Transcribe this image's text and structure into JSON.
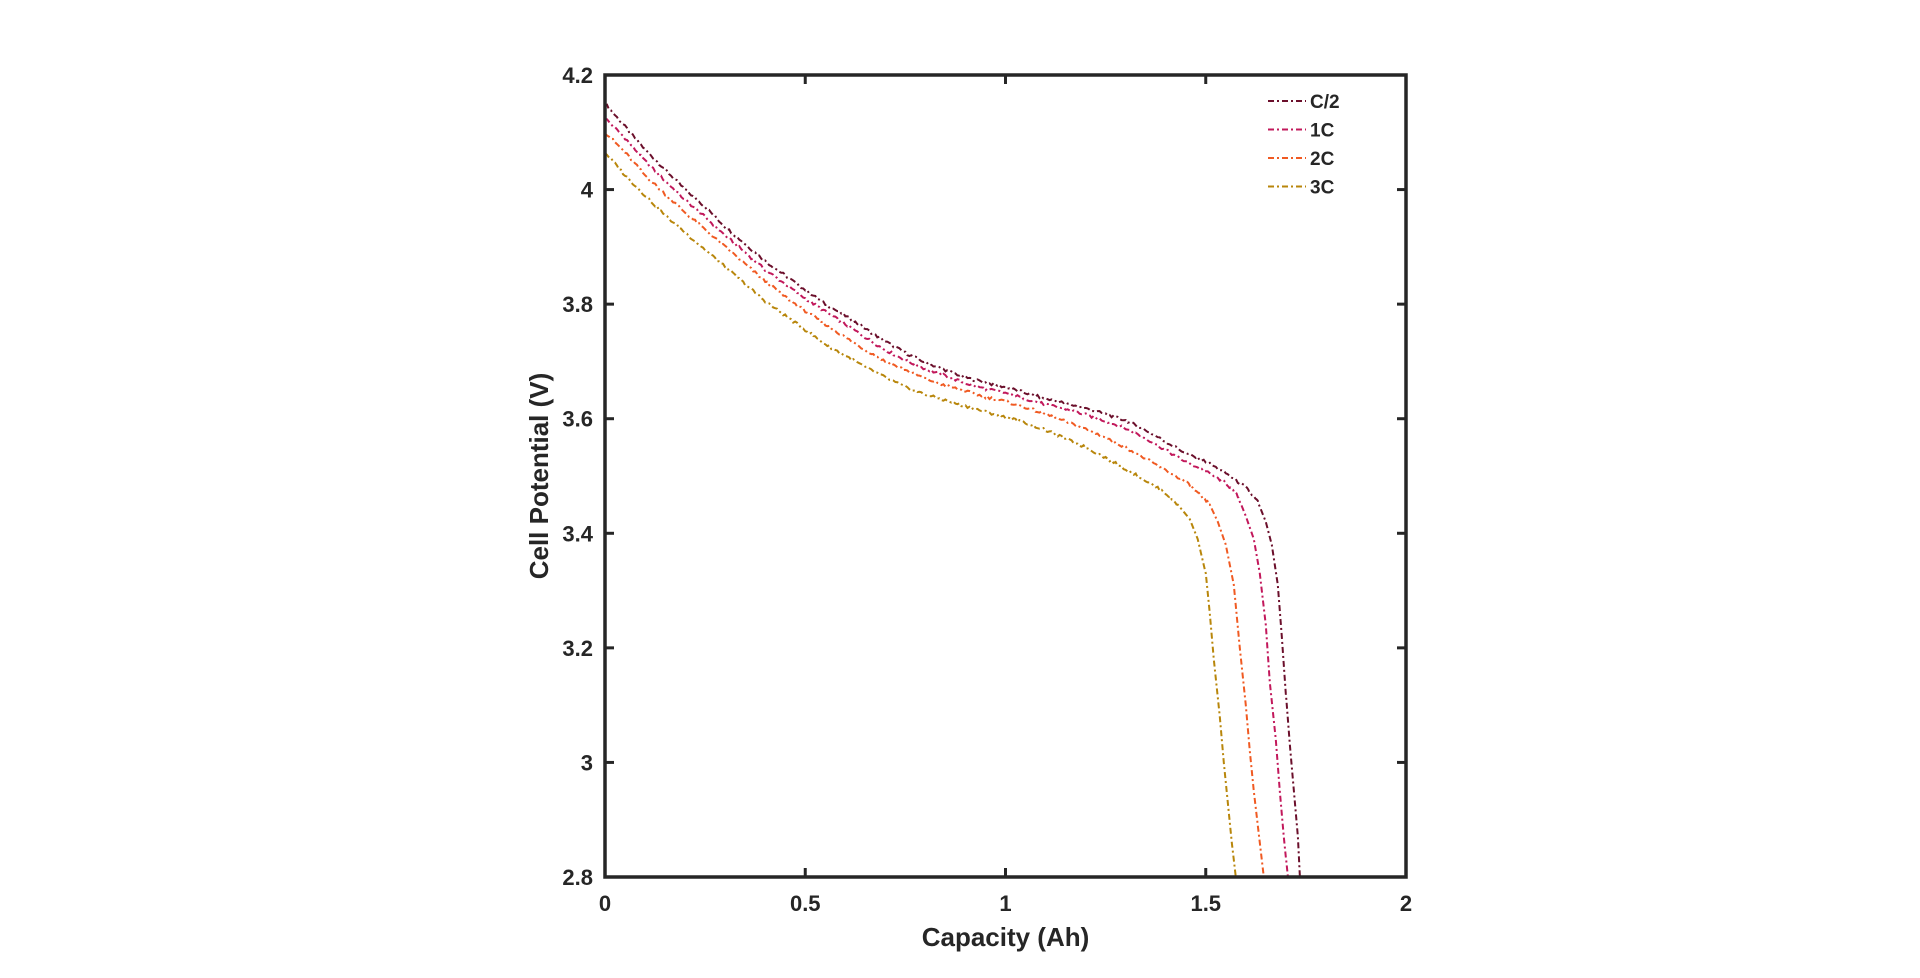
{
  "chart_data": {
    "type": "line",
    "title": "",
    "xlabel": "Capacity (Ah)",
    "ylabel": "Cell Potential (V)",
    "xlim": [
      0,
      2
    ],
    "ylim": [
      2.8,
      4.2
    ],
    "x_ticks": [
      0,
      0.5,
      1,
      1.5,
      2
    ],
    "x_tick_labels": [
      "0",
      "0.5",
      "1",
      "1.5",
      "2"
    ],
    "y_ticks": [
      2.8,
      3,
      3.2,
      3.4,
      3.6,
      3.8,
      4,
      4.2
    ],
    "y_tick_labels": [
      "2.8",
      "3",
      "3.2",
      "3.4",
      "3.6",
      "3.8",
      "4",
      "4.2"
    ],
    "grid": false,
    "legend_position": "top-right",
    "line_style": "dash-dot",
    "series": [
      {
        "name": "C/2",
        "color": "#6b0f2b",
        "points": [
          [
            0,
            4.15
          ],
          [
            0.05,
            4.11
          ],
          [
            0.1,
            4.07
          ],
          [
            0.15,
            4.035
          ],
          [
            0.2,
            4.0
          ],
          [
            0.25,
            3.97
          ],
          [
            0.3,
            3.935
          ],
          [
            0.35,
            3.905
          ],
          [
            0.4,
            3.875
          ],
          [
            0.45,
            3.85
          ],
          [
            0.5,
            3.825
          ],
          [
            0.55,
            3.8
          ],
          [
            0.6,
            3.78
          ],
          [
            0.65,
            3.757
          ],
          [
            0.7,
            3.735
          ],
          [
            0.75,
            3.715
          ],
          [
            0.8,
            3.698
          ],
          [
            0.85,
            3.685
          ],
          [
            0.9,
            3.672
          ],
          [
            0.95,
            3.663
          ],
          [
            1.0,
            3.655
          ],
          [
            1.05,
            3.645
          ],
          [
            1.1,
            3.635
          ],
          [
            1.15,
            3.627
          ],
          [
            1.2,
            3.618
          ],
          [
            1.25,
            3.608
          ],
          [
            1.3,
            3.597
          ],
          [
            1.35,
            3.58
          ],
          [
            1.4,
            3.56
          ],
          [
            1.45,
            3.54
          ],
          [
            1.5,
            3.525
          ],
          [
            1.55,
            3.505
          ],
          [
            1.6,
            3.48
          ],
          [
            1.63,
            3.455
          ],
          [
            1.65,
            3.42
          ],
          [
            1.665,
            3.38
          ],
          [
            1.68,
            3.31
          ],
          [
            1.69,
            3.22
          ],
          [
            1.7,
            3.12
          ],
          [
            1.71,
            3.03
          ],
          [
            1.72,
            2.95
          ],
          [
            1.73,
            2.87
          ],
          [
            1.735,
            2.8
          ]
        ]
      },
      {
        "name": "1C",
        "color": "#c2185b",
        "points": [
          [
            0,
            4.125
          ],
          [
            0.05,
            4.09
          ],
          [
            0.1,
            4.05
          ],
          [
            0.15,
            4.015
          ],
          [
            0.2,
            3.982
          ],
          [
            0.25,
            3.952
          ],
          [
            0.3,
            3.92
          ],
          [
            0.35,
            3.89
          ],
          [
            0.4,
            3.86
          ],
          [
            0.45,
            3.835
          ],
          [
            0.5,
            3.81
          ],
          [
            0.55,
            3.787
          ],
          [
            0.6,
            3.765
          ],
          [
            0.65,
            3.742
          ],
          [
            0.7,
            3.72
          ],
          [
            0.75,
            3.702
          ],
          [
            0.8,
            3.687
          ],
          [
            0.85,
            3.675
          ],
          [
            0.9,
            3.662
          ],
          [
            0.95,
            3.652
          ],
          [
            1.0,
            3.645
          ],
          [
            1.05,
            3.635
          ],
          [
            1.1,
            3.625
          ],
          [
            1.15,
            3.617
          ],
          [
            1.2,
            3.607
          ],
          [
            1.25,
            3.596
          ],
          [
            1.3,
            3.583
          ],
          [
            1.35,
            3.566
          ],
          [
            1.4,
            3.545
          ],
          [
            1.45,
            3.525
          ],
          [
            1.5,
            3.508
          ],
          [
            1.55,
            3.488
          ],
          [
            1.58,
            3.465
          ],
          [
            1.6,
            3.43
          ],
          [
            1.62,
            3.39
          ],
          [
            1.635,
            3.33
          ],
          [
            1.65,
            3.24
          ],
          [
            1.66,
            3.14
          ],
          [
            1.675,
            3.04
          ],
          [
            1.685,
            2.95
          ],
          [
            1.695,
            2.87
          ],
          [
            1.705,
            2.8
          ]
        ]
      },
      {
        "name": "2C",
        "color": "#f05a22",
        "points": [
          [
            0,
            4.1
          ],
          [
            0.05,
            4.065
          ],
          [
            0.1,
            4.025
          ],
          [
            0.15,
            3.992
          ],
          [
            0.2,
            3.96
          ],
          [
            0.25,
            3.93
          ],
          [
            0.3,
            3.9
          ],
          [
            0.35,
            3.87
          ],
          [
            0.4,
            3.84
          ],
          [
            0.45,
            3.813
          ],
          [
            0.5,
            3.788
          ],
          [
            0.55,
            3.765
          ],
          [
            0.6,
            3.742
          ],
          [
            0.65,
            3.72
          ],
          [
            0.7,
            3.7
          ],
          [
            0.75,
            3.685
          ],
          [
            0.8,
            3.67
          ],
          [
            0.85,
            3.658
          ],
          [
            0.9,
            3.648
          ],
          [
            0.95,
            3.638
          ],
          [
            1.0,
            3.63
          ],
          [
            1.05,
            3.62
          ],
          [
            1.1,
            3.608
          ],
          [
            1.15,
            3.595
          ],
          [
            1.2,
            3.582
          ],
          [
            1.25,
            3.567
          ],
          [
            1.3,
            3.55
          ],
          [
            1.35,
            3.53
          ],
          [
            1.4,
            3.51
          ],
          [
            1.45,
            3.49
          ],
          [
            1.48,
            3.47
          ],
          [
            1.51,
            3.45
          ],
          [
            1.53,
            3.42
          ],
          [
            1.55,
            3.38
          ],
          [
            1.57,
            3.31
          ],
          [
            1.585,
            3.2
          ],
          [
            1.6,
            3.1
          ],
          [
            1.61,
            3.02
          ],
          [
            1.62,
            2.95
          ],
          [
            1.635,
            2.86
          ],
          [
            1.645,
            2.8
          ]
        ]
      },
      {
        "name": "3C",
        "color": "#b8860b",
        "points": [
          [
            0,
            4.065
          ],
          [
            0.05,
            4.025
          ],
          [
            0.1,
            3.99
          ],
          [
            0.15,
            3.955
          ],
          [
            0.2,
            3.925
          ],
          [
            0.25,
            3.895
          ],
          [
            0.3,
            3.865
          ],
          [
            0.35,
            3.835
          ],
          [
            0.4,
            3.805
          ],
          [
            0.45,
            3.78
          ],
          [
            0.5,
            3.755
          ],
          [
            0.55,
            3.73
          ],
          [
            0.6,
            3.71
          ],
          [
            0.65,
            3.69
          ],
          [
            0.7,
            3.672
          ],
          [
            0.75,
            3.655
          ],
          [
            0.8,
            3.642
          ],
          [
            0.85,
            3.632
          ],
          [
            0.9,
            3.622
          ],
          [
            0.95,
            3.612
          ],
          [
            1.0,
            3.603
          ],
          [
            1.05,
            3.593
          ],
          [
            1.1,
            3.58
          ],
          [
            1.15,
            3.565
          ],
          [
            1.2,
            3.55
          ],
          [
            1.25,
            3.532
          ],
          [
            1.3,
            3.512
          ],
          [
            1.35,
            3.492
          ],
          [
            1.4,
            3.47
          ],
          [
            1.43,
            3.45
          ],
          [
            1.46,
            3.425
          ],
          [
            1.48,
            3.39
          ],
          [
            1.5,
            3.33
          ],
          [
            1.51,
            3.26
          ],
          [
            1.52,
            3.18
          ],
          [
            1.535,
            3.08
          ],
          [
            1.545,
            3.0
          ],
          [
            1.555,
            2.93
          ],
          [
            1.565,
            2.86
          ],
          [
            1.575,
            2.8
          ]
        ]
      }
    ]
  }
}
